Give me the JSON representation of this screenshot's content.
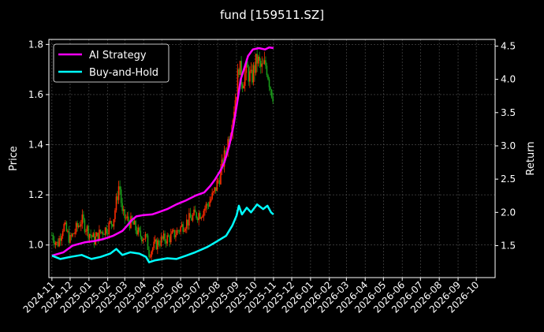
{
  "chart_data": {
    "type": "line",
    "title": "fund [159511.SZ]",
    "ylabel_left": "Price",
    "ylabel_right": "Return",
    "y_left_lim": [
      0.87,
      1.82
    ],
    "y_right_lim": [
      1.02,
      4.6
    ],
    "y_left_ticks": [
      "1.0",
      "1.2",
      "1.4",
      "1.6",
      "1.8"
    ],
    "y_right_ticks": [
      "1.5",
      "2.0",
      "2.5",
      "3.0",
      "3.5",
      "4.0",
      "4.5"
    ],
    "x_ticks": [
      "2024-11",
      "2024-12",
      "2025-01",
      "2025-02",
      "2025-03",
      "2025-04",
      "2025-05",
      "2025-06",
      "2025-07",
      "2025-08",
      "2025-09",
      "2025-10",
      "2025-11",
      "2025-12",
      "2026-01",
      "2026-02",
      "2026-03",
      "2026-04",
      "2026-05",
      "2026-06",
      "2026-07",
      "2026-08",
      "2026-09",
      "2026-10"
    ],
    "x_range": [
      "2024-10-27",
      "2026-11-01"
    ],
    "grid": true,
    "legend_position": "top-left",
    "series": [
      {
        "name": "AI Strategy",
        "axis": "right",
        "color": "#ff00ff",
        "points": [
          [
            "2024-11-01",
            1.35
          ],
          [
            "2024-11-20",
            1.4
          ],
          [
            "2024-12-05",
            1.5
          ],
          [
            "2024-12-25",
            1.55
          ],
          [
            "2025-01-10",
            1.57
          ],
          [
            "2025-01-25",
            1.6
          ],
          [
            "2025-02-10",
            1.65
          ],
          [
            "2025-02-25",
            1.72
          ],
          [
            "2025-03-05",
            1.8
          ],
          [
            "2025-03-12",
            1.88
          ],
          [
            "2025-03-20",
            1.94
          ],
          [
            "2025-04-01",
            1.96
          ],
          [
            "2025-04-15",
            1.97
          ],
          [
            "2025-04-25",
            2.0
          ],
          [
            "2025-05-10",
            2.05
          ],
          [
            "2025-05-25",
            2.12
          ],
          [
            "2025-06-10",
            2.18
          ],
          [
            "2025-06-25",
            2.25
          ],
          [
            "2025-07-10",
            2.3
          ],
          [
            "2025-07-20",
            2.4
          ],
          [
            "2025-07-28",
            2.5
          ],
          [
            "2025-08-05",
            2.62
          ],
          [
            "2025-08-12",
            2.75
          ],
          [
            "2025-08-20",
            3.0
          ],
          [
            "2025-08-27",
            3.3
          ],
          [
            "2025-09-03",
            3.7
          ],
          [
            "2025-09-08",
            4.0
          ],
          [
            "2025-09-15",
            4.2
          ],
          [
            "2025-09-20",
            4.35
          ],
          [
            "2025-09-28",
            4.45
          ],
          [
            "2025-10-08",
            4.47
          ],
          [
            "2025-10-18",
            4.45
          ],
          [
            "2025-10-25",
            4.48
          ],
          [
            "2025-11-01",
            4.47
          ]
        ]
      },
      {
        "name": "Buy-and-Hold",
        "axis": "right",
        "color": "#00ffff",
        "points": [
          [
            "2024-11-01",
            1.35
          ],
          [
            "2024-11-15",
            1.3
          ],
          [
            "2024-12-01",
            1.33
          ],
          [
            "2024-12-20",
            1.36
          ],
          [
            "2025-01-05",
            1.3
          ],
          [
            "2025-01-20",
            1.33
          ],
          [
            "2025-02-05",
            1.38
          ],
          [
            "2025-02-15",
            1.45
          ],
          [
            "2025-02-25",
            1.36
          ],
          [
            "2025-03-10",
            1.4
          ],
          [
            "2025-03-25",
            1.38
          ],
          [
            "2025-04-05",
            1.33
          ],
          [
            "2025-04-10",
            1.25
          ],
          [
            "2025-04-20",
            1.28
          ],
          [
            "2025-05-10",
            1.31
          ],
          [
            "2025-05-25",
            1.3
          ],
          [
            "2025-06-10",
            1.35
          ],
          [
            "2025-06-25",
            1.4
          ],
          [
            "2025-07-15",
            1.48
          ],
          [
            "2025-07-30",
            1.56
          ],
          [
            "2025-08-15",
            1.65
          ],
          [
            "2025-08-25",
            1.8
          ],
          [
            "2025-09-01",
            1.95
          ],
          [
            "2025-09-05",
            2.1
          ],
          [
            "2025-09-10",
            1.97
          ],
          [
            "2025-09-18",
            2.07
          ],
          [
            "2025-09-25",
            2.0
          ],
          [
            "2025-10-05",
            2.12
          ],
          [
            "2025-10-15",
            2.05
          ],
          [
            "2025-10-22",
            2.1
          ],
          [
            "2025-10-28",
            2.0
          ],
          [
            "2025-11-01",
            1.97
          ]
        ]
      },
      {
        "name": "",
        "axis": "left",
        "type": "candlestick",
        "color_up": "#ff2a00",
        "color_down": "#1a9e1a",
        "points": [
          [
            "2024-11-01",
            1.04
          ],
          [
            "2024-11-10",
            1.0
          ],
          [
            "2024-11-20",
            1.08
          ],
          [
            "2024-12-01",
            1.02
          ],
          [
            "2024-12-10",
            1.06
          ],
          [
            "2024-12-20",
            1.1
          ],
          [
            "2025-01-01",
            1.05
          ],
          [
            "2025-01-10",
            1.02
          ],
          [
            "2025-01-20",
            1.05
          ],
          [
            "2025-02-01",
            1.07
          ],
          [
            "2025-02-10",
            1.1
          ],
          [
            "2025-02-15",
            1.17
          ],
          [
            "2025-02-20",
            1.25
          ],
          [
            "2025-02-25",
            1.12
          ],
          [
            "2025-03-05",
            1.1
          ],
          [
            "2025-03-15",
            1.08
          ],
          [
            "2025-03-25",
            1.04
          ],
          [
            "2025-04-05",
            1.03
          ],
          [
            "2025-04-10",
            0.97
          ],
          [
            "2025-04-20",
            1.0
          ],
          [
            "2025-05-01",
            1.02
          ],
          [
            "2025-05-15",
            1.03
          ],
          [
            "2025-05-25",
            1.05
          ],
          [
            "2025-06-05",
            1.08
          ],
          [
            "2025-06-15",
            1.1
          ],
          [
            "2025-06-25",
            1.12
          ],
          [
            "2025-07-05",
            1.13
          ],
          [
            "2025-07-15",
            1.16
          ],
          [
            "2025-07-25",
            1.2
          ],
          [
            "2025-08-05",
            1.28
          ],
          [
            "2025-08-15",
            1.38
          ],
          [
            "2025-08-25",
            1.5
          ],
          [
            "2025-09-01",
            1.62
          ],
          [
            "2025-09-05",
            1.72
          ],
          [
            "2025-09-10",
            1.65
          ],
          [
            "2025-09-18",
            1.7
          ],
          [
            "2025-09-25",
            1.66
          ],
          [
            "2025-10-05",
            1.74
          ],
          [
            "2025-10-12",
            1.7
          ],
          [
            "2025-10-20",
            1.72
          ],
          [
            "2025-10-28",
            1.62
          ],
          [
            "2025-11-01",
            1.6
          ]
        ]
      }
    ]
  },
  "legend": [
    {
      "label": "AI Strategy",
      "color": "#ff00ff"
    },
    {
      "label": "Buy-and-Hold",
      "color": "#00ffff"
    }
  ]
}
